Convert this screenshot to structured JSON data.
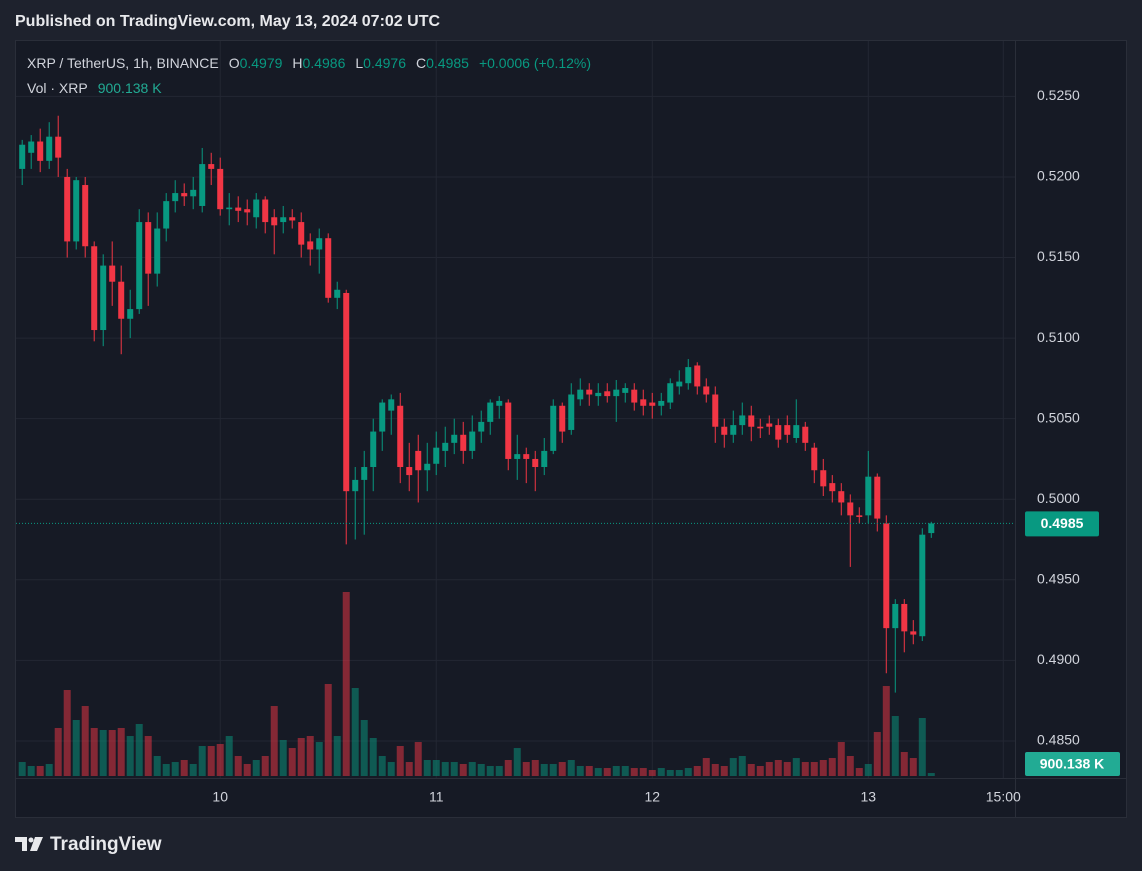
{
  "chart_data": {
    "type": "candlestick",
    "published": "Published on TradingView.com, May 13, 2024 07:02 UTC",
    "title": "XRP / TetherUS, 1h, BINANCE",
    "legend_keys": [
      "O",
      "H",
      "L",
      "C"
    ],
    "change_label": "+0.0006 (+0.12%)",
    "brand": "TradingView",
    "up_color": "#089981",
    "down_color": "#f23645",
    "open": [
      0.5205,
      0.5215,
      0.5222,
      0.521,
      0.5225,
      0.52,
      0.516,
      0.5195,
      0.5157,
      0.5105,
      0.5145,
      0.5135,
      0.5112,
      0.5118,
      0.5172,
      0.514,
      0.5168,
      0.5185,
      0.519,
      0.5188,
      0.5182,
      0.5208,
      0.5205,
      0.518,
      0.5181,
      0.518,
      0.5175,
      0.5186,
      0.5175,
      0.5172,
      0.5175,
      0.5172,
      0.516,
      0.5155,
      0.5162,
      0.5125,
      0.5128,
      0.5005,
      0.5012,
      0.502,
      0.5042,
      0.5055,
      0.5058,
      0.502,
      0.503,
      0.5018,
      0.5022,
      0.503,
      0.5035,
      0.504,
      0.503,
      0.5042,
      0.5048,
      0.5058,
      0.506,
      0.5025,
      0.5028,
      0.5025,
      0.502,
      0.503,
      0.5058,
      0.5043,
      0.5062,
      0.5068,
      0.5064,
      0.5067,
      0.5064,
      0.5066,
      0.5068,
      0.5062,
      0.506,
      0.5058,
      0.506,
      0.507,
      0.5072,
      0.5083,
      0.507,
      0.5065,
      0.5045,
      0.504,
      0.5046,
      0.5052,
      0.5045,
      0.5047,
      0.5046,
      0.5046,
      0.5038,
      0.5045,
      0.5032,
      0.5018,
      0.501,
      0.5005,
      0.4998,
      0.499,
      0.499,
      0.5014,
      0.4985,
      0.492,
      0.4935,
      0.4918,
      0.4915,
      0.4979
    ],
    "high": [
      0.5223,
      0.5226,
      0.523,
      0.5234,
      0.5238,
      0.5205,
      0.52,
      0.52,
      0.516,
      0.5152,
      0.516,
      0.5145,
      0.513,
      0.518,
      0.5178,
      0.5178,
      0.519,
      0.5198,
      0.5196,
      0.52,
      0.5218,
      0.5215,
      0.5212,
      0.519,
      0.5188,
      0.5186,
      0.519,
      0.5188,
      0.518,
      0.5182,
      0.518,
      0.5178,
      0.5165,
      0.5168,
      0.5165,
      0.5135,
      0.513,
      0.502,
      0.503,
      0.505,
      0.5062,
      0.5065,
      0.5066,
      0.5035,
      0.504,
      0.5035,
      0.5042,
      0.5045,
      0.505,
      0.5048,
      0.5052,
      0.5055,
      0.5062,
      0.5064,
      0.5062,
      0.504,
      0.5032,
      0.503,
      0.5038,
      0.5062,
      0.506,
      0.5072,
      0.5075,
      0.5072,
      0.5072,
      0.5072,
      0.5074,
      0.5072,
      0.5072,
      0.5068,
      0.5066,
      0.5066,
      0.5075,
      0.508,
      0.5087,
      0.5085,
      0.5075,
      0.507,
      0.505,
      0.5055,
      0.506,
      0.5058,
      0.505,
      0.5052,
      0.505,
      0.5052,
      0.5062,
      0.5048,
      0.5035,
      0.5025,
      0.5015,
      0.501,
      0.5003,
      0.4995,
      0.503,
      0.5016,
      0.499,
      0.4938,
      0.4938,
      0.4925,
      0.4982,
      0.4986
    ],
    "low": [
      0.5195,
      0.5205,
      0.5203,
      0.5205,
      0.52,
      0.515,
      0.5155,
      0.515,
      0.5098,
      0.5095,
      0.512,
      0.509,
      0.51,
      0.5115,
      0.512,
      0.5132,
      0.516,
      0.5178,
      0.5182,
      0.518,
      0.5178,
      0.5195,
      0.5176,
      0.517,
      0.5172,
      0.517,
      0.5168,
      0.5165,
      0.5152,
      0.5165,
      0.5168,
      0.515,
      0.5145,
      0.514,
      0.5122,
      0.5118,
      0.4972,
      0.4975,
      0.4978,
      0.5005,
      0.503,
      0.504,
      0.501,
      0.5005,
      0.4998,
      0.5005,
      0.5015,
      0.502,
      0.5028,
      0.5022,
      0.5025,
      0.5035,
      0.504,
      0.505,
      0.5018,
      0.5012,
      0.501,
      0.5005,
      0.5015,
      0.5028,
      0.5035,
      0.504,
      0.5058,
      0.5058,
      0.5058,
      0.506,
      0.5048,
      0.506,
      0.5055,
      0.5052,
      0.505,
      0.5052,
      0.5056,
      0.5065,
      0.5068,
      0.5065,
      0.506,
      0.5035,
      0.5032,
      0.5035,
      0.504,
      0.5036,
      0.5038,
      0.504,
      0.5032,
      0.5035,
      0.5035,
      0.503,
      0.501,
      0.5002,
      0.4998,
      0.499,
      0.4958,
      0.4985,
      0.4985,
      0.498,
      0.4892,
      0.488,
      0.4905,
      0.491,
      0.4912,
      0.4976
    ],
    "close": [
      0.522,
      0.5222,
      0.521,
      0.5225,
      0.5212,
      0.516,
      0.5198,
      0.5157,
      0.5105,
      0.5145,
      0.5135,
      0.5112,
      0.5118,
      0.5172,
      0.514,
      0.5168,
      0.5185,
      0.519,
      0.5188,
      0.5192,
      0.5208,
      0.5205,
      0.518,
      0.5181,
      0.5179,
      0.5178,
      0.5186,
      0.5172,
      0.517,
      0.5175,
      0.5173,
      0.5158,
      0.5155,
      0.5162,
      0.5125,
      0.513,
      0.5005,
      0.5012,
      0.502,
      0.5042,
      0.506,
      0.5062,
      0.502,
      0.5015,
      0.5018,
      0.5022,
      0.5032,
      0.5035,
      0.504,
      0.503,
      0.5042,
      0.5048,
      0.506,
      0.5061,
      0.5025,
      0.5028,
      0.5025,
      0.502,
      0.503,
      0.5058,
      0.5042,
      0.5065,
      0.5068,
      0.5065,
      0.5066,
      0.5064,
      0.5068,
      0.5069,
      0.506,
      0.5058,
      0.5058,
      0.5061,
      0.5072,
      0.5073,
      0.5082,
      0.507,
      0.5065,
      0.5045,
      0.504,
      0.5046,
      0.5052,
      0.5045,
      0.5044,
      0.5045,
      0.5037,
      0.504,
      0.5046,
      0.5035,
      0.5018,
      0.5008,
      0.5005,
      0.4998,
      0.499,
      0.4989,
      0.5014,
      0.4988,
      0.492,
      0.4935,
      0.4918,
      0.4916,
      0.4978,
      0.4985
    ],
    "volume": {
      "name": "Vol · XRP",
      "values": [
        4240000,
        3030000,
        3030000,
        3640000,
        14550000,
        26060000,
        16970000,
        21210000,
        14550000,
        13940000,
        13940000,
        14550000,
        12120000,
        15760000,
        12120000,
        6060000,
        3640000,
        4240000,
        4850000,
        3640000,
        9090000,
        9090000,
        9700000,
        12120000,
        6060000,
        3640000,
        4850000,
        6060000,
        21210000,
        10910000,
        8480000,
        11520000,
        12120000,
        10300000,
        27880000,
        12120000,
        55760000,
        26670000,
        16970000,
        11520000,
        6060000,
        4240000,
        9090000,
        4240000,
        10300000,
        4850000,
        4850000,
        4240000,
        4240000,
        3640000,
        4240000,
        3640000,
        3030000,
        3030000,
        4850000,
        8480000,
        4240000,
        4850000,
        3640000,
        3640000,
        4240000,
        4850000,
        3030000,
        3030000,
        2420000,
        2420000,
        3030000,
        3030000,
        2420000,
        2420000,
        1820000,
        2420000,
        1820000,
        1820000,
        2420000,
        3030000,
        5450000,
        3640000,
        3030000,
        5450000,
        6060000,
        3640000,
        3030000,
        4240000,
        4850000,
        4240000,
        5450000,
        4240000,
        4240000,
        4850000,
        5450000,
        10300000,
        6060000,
        2420000,
        3640000,
        13330000,
        27270000,
        18180000,
        7270000,
        5450000,
        17580000,
        900138
      ],
      "value_labels": [
        null,
        null,
        null,
        null,
        null,
        null,
        null,
        null,
        null,
        null,
        null,
        null,
        null,
        null,
        null,
        null,
        null,
        null,
        null,
        null,
        null,
        null,
        null,
        null,
        null,
        null,
        null,
        null,
        null,
        null,
        null,
        null,
        null,
        null,
        null,
        null,
        null,
        null,
        null,
        null,
        null,
        null,
        null,
        null,
        null,
        null,
        null,
        null,
        null,
        null,
        null,
        null,
        null,
        null,
        null,
        null,
        null,
        null,
        null,
        null,
        null,
        null,
        null,
        null,
        null,
        null,
        null,
        null,
        null,
        null,
        null,
        null,
        null,
        null,
        null,
        null,
        null,
        null,
        null,
        null,
        null,
        null,
        null,
        null,
        null,
        null,
        null,
        null,
        null,
        null,
        null,
        null,
        null,
        null,
        null,
        null,
        null,
        null,
        null,
        null,
        null,
        "900.138 K"
      ]
    },
    "ylim": [
      0.4827,
      0.5285
    ],
    "yticks": [
      {
        "value": 0.485,
        "label": "0.4850"
      },
      {
        "value": 0.49,
        "label": "0.4900"
      },
      {
        "value": 0.495,
        "label": "0.4950"
      },
      {
        "value": 0.5,
        "label": "0.5000"
      },
      {
        "value": 0.505,
        "label": "0.5050"
      },
      {
        "value": 0.51,
        "label": "0.5100"
      },
      {
        "value": 0.515,
        "label": "0.5150"
      },
      {
        "value": 0.52,
        "label": "0.5200"
      },
      {
        "value": 0.525,
        "label": "0.5250"
      }
    ],
    "xlim": [
      -0.8,
      110.3
    ],
    "xticks": [
      {
        "value": 22,
        "label": "10"
      },
      {
        "value": 46,
        "label": "11"
      },
      {
        "value": 70,
        "label": "12"
      },
      {
        "value": 94,
        "label": "13"
      },
      {
        "value": 109,
        "label": "15:00"
      }
    ],
    "grid": true,
    "last_price_line": true
  }
}
